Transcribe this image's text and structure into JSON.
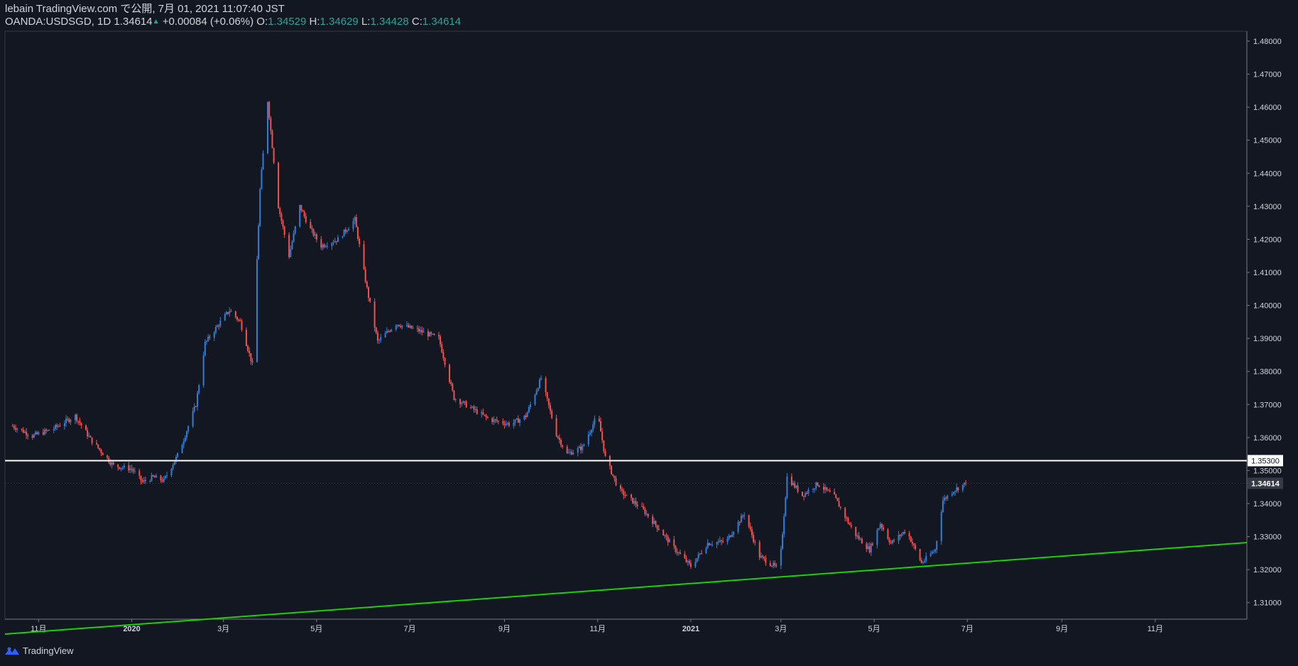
{
  "header": {
    "publisher": "lebain TradingView.com で公開, 7月 01, 2021 11:07:40 JST",
    "symbol": "OANDA:USDSGD, 1D",
    "last": "1.34614",
    "change": "+0.00084 (+0.06%)",
    "o_label": "O:",
    "o": "1.34529",
    "h_label": "H:",
    "h": "1.34629",
    "l_label": "L:",
    "l": "1.34428",
    "c_label": "C:",
    "c": "1.34614"
  },
  "footer": {
    "brand": "TradingView"
  },
  "colors": {
    "background": "#131722",
    "up": "#2f7fd8",
    "down": "#ef5350",
    "horizontal_line": "#ffffff",
    "trendline": "#19d300",
    "axis_text": "#d1d4dc"
  },
  "chart_data": {
    "type": "candlestick",
    "symbol": "OANDA:USDSGD",
    "timeframe": "1D",
    "ylim": [
      1.305,
      1.483
    ],
    "y_ticks": [
      "1.31000",
      "1.32000",
      "1.33000",
      "1.34000",
      "1.35000",
      "1.36000",
      "1.37000",
      "1.38000",
      "1.39000",
      "1.40000",
      "1.41000",
      "1.42000",
      "1.43000",
      "1.44000",
      "1.45000",
      "1.46000",
      "1.47000",
      "1.48000"
    ],
    "x_ticks": [
      "11月",
      "2020",
      "3月",
      "5月",
      "7月",
      "9月",
      "11月",
      "2021",
      "3月",
      "5月",
      "7月",
      "9月",
      "11月"
    ],
    "close_path": [
      [
        "2019-10-15",
        1.3635
      ],
      [
        "2019-10-28",
        1.3605
      ],
      [
        "2019-11-10",
        1.3625
      ],
      [
        "2019-11-25",
        1.3665
      ],
      [
        "2019-12-05",
        1.3595
      ],
      [
        "2019-12-20",
        1.3515
      ],
      [
        "2020-01-01",
        1.3505
      ],
      [
        "2020-01-08",
        1.3465
      ],
      [
        "2020-01-15",
        1.348
      ],
      [
        "2020-01-22",
        1.347
      ],
      [
        "2020-02-01",
        1.3555
      ],
      [
        "2020-02-12",
        1.37
      ],
      [
        "2020-02-18",
        1.3885
      ],
      [
        "2020-02-28",
        1.395
      ],
      [
        "2020-03-05",
        1.3985
      ],
      [
        "2020-03-12",
        1.395
      ],
      [
        "2020-03-20",
        1.382
      ],
      [
        "2020-03-25",
        1.435
      ],
      [
        "2020-03-30",
        1.462
      ],
      [
        "2020-04-06",
        1.43
      ],
      [
        "2020-04-13",
        1.415
      ],
      [
        "2020-04-20",
        1.43
      ],
      [
        "2020-04-27",
        1.423
      ],
      [
        "2020-05-04",
        1.418
      ],
      [
        "2020-05-15",
        1.42
      ],
      [
        "2020-05-26",
        1.426
      ],
      [
        "2020-06-03",
        1.405
      ],
      [
        "2020-06-10",
        1.389
      ],
      [
        "2020-06-22",
        1.3945
      ],
      [
        "2020-07-06",
        1.3925
      ],
      [
        "2020-07-20",
        1.39
      ],
      [
        "2020-07-30",
        1.372
      ],
      [
        "2020-08-10",
        1.369
      ],
      [
        "2020-08-22",
        1.3655
      ],
      [
        "2020-09-05",
        1.364
      ],
      [
        "2020-09-15",
        1.3665
      ],
      [
        "2020-09-25",
        1.378
      ],
      [
        "2020-10-05",
        1.361
      ],
      [
        "2020-10-12",
        1.355
      ],
      [
        "2020-10-22",
        1.357
      ],
      [
        "2020-11-01",
        1.367
      ],
      [
        "2020-11-06",
        1.354
      ],
      [
        "2020-11-15",
        1.344
      ],
      [
        "2020-11-30",
        1.3385
      ],
      [
        "2020-12-10",
        1.333
      ],
      [
        "2020-12-22",
        1.326
      ],
      [
        "2021-01-01",
        1.321
      ],
      [
        "2021-01-12",
        1.328
      ],
      [
        "2021-01-24",
        1.3285
      ],
      [
        "2021-02-05",
        1.337
      ],
      [
        "2021-02-15",
        1.324
      ],
      [
        "2021-02-28",
        1.32
      ],
      [
        "2021-03-05",
        1.348
      ],
      [
        "2021-03-15",
        1.3425
      ],
      [
        "2021-03-25",
        1.346
      ],
      [
        "2021-04-05",
        1.342
      ],
      [
        "2021-04-18",
        1.331
      ],
      [
        "2021-04-28",
        1.326
      ],
      [
        "2021-05-05",
        1.334
      ],
      [
        "2021-05-12",
        1.328
      ],
      [
        "2021-05-22",
        1.332
      ],
      [
        "2021-06-01",
        1.322
      ],
      [
        "2021-06-10",
        1.326
      ],
      [
        "2021-06-15",
        1.341
      ],
      [
        "2021-06-22",
        1.344
      ],
      [
        "2021-06-30",
        1.3461
      ]
    ],
    "horizontal_line": {
      "value": 1.353,
      "label": "1.35300"
    },
    "last_price": {
      "value": 1.34614,
      "label": "1.34614"
    },
    "trendline": [
      [
        "2019-10-10",
        1.3005
      ],
      [
        "2021-12-31",
        1.3282
      ]
    ],
    "grid": false
  }
}
